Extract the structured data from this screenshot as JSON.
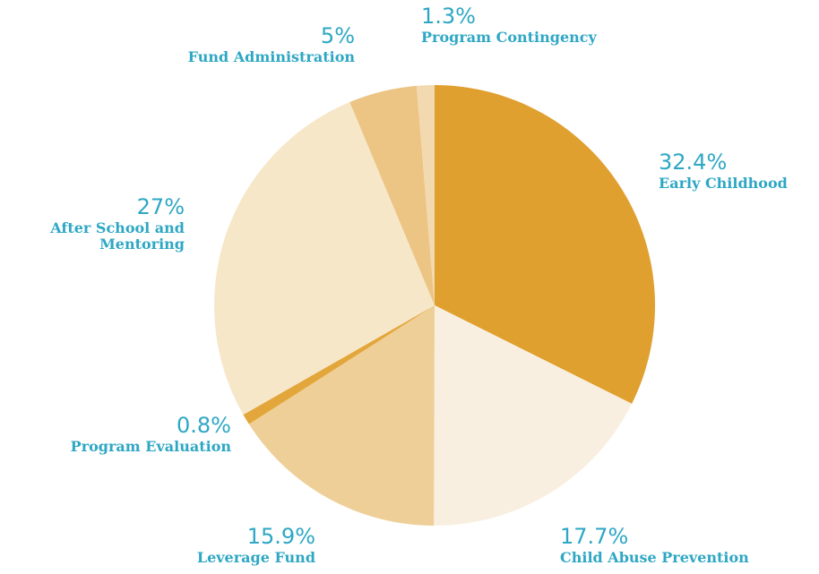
{
  "chart_data": {
    "type": "pie",
    "categories": [
      "Early Childhood",
      "Child Abuse Prevention",
      "Leverage Fund",
      "Program Evaluation",
      "After School and Mentoring",
      "Fund Administration",
      "Program Contingency"
    ],
    "values": [
      32.4,
      17.7,
      15.9,
      0.8,
      27,
      5,
      1.3
    ],
    "value_labels": [
      "32.4%",
      "17.7%",
      "15.9%",
      "0.8%",
      "27%",
      "5%",
      "1.3%"
    ],
    "colors": [
      "#e0a030",
      "#f9efe0",
      "#efcf98",
      "#e3a63a",
      "#f7e7c9",
      "#ecc585",
      "#f3d9b0"
    ],
    "label_color": "#2ea7c4"
  }
}
